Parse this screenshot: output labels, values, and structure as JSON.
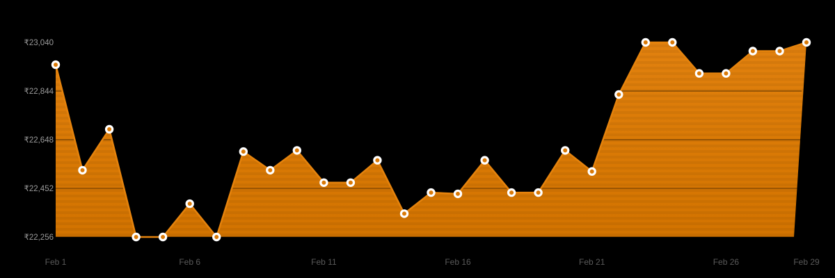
{
  "page": {
    "background": "#000000"
  },
  "chart_data": {
    "type": "area",
    "title": "",
    "xlabel": "",
    "ylabel": "",
    "currency": "₹",
    "x": [
      "Feb 1",
      "Feb 2",
      "Feb 3",
      "Feb 4",
      "Feb 5",
      "Feb 6",
      "Feb 7",
      "Feb 8",
      "Feb 9",
      "Feb 10",
      "Feb 11",
      "Feb 12",
      "Feb 13",
      "Feb 14",
      "Feb 15",
      "Feb 16",
      "Feb 17",
      "Feb 18",
      "Feb 19",
      "Feb 20",
      "Feb 21",
      "Feb 22",
      "Feb 23",
      "Feb 24",
      "Feb 25",
      "Feb 26",
      "Feb 27",
      "Feb 28",
      "Feb 29"
    ],
    "values": [
      22950,
      22525,
      22690,
      22256,
      22256,
      22390,
      22256,
      22600,
      22525,
      22605,
      22475,
      22475,
      22565,
      22350,
      22435,
      22430,
      22565,
      22435,
      22435,
      22605,
      22520,
      22830,
      23040,
      23040,
      22915,
      22915,
      23005,
      23005,
      23040
    ],
    "ylim": [
      22256,
      23040
    ],
    "y_ticks": [
      {
        "value": 23040,
        "label": "₹23,040"
      },
      {
        "value": 22844,
        "label": "₹22,844"
      },
      {
        "value": 22648,
        "label": "₹22,648"
      },
      {
        "value": 22452,
        "label": "₹22,452"
      },
      {
        "value": 22256,
        "label": "₹22,256"
      }
    ],
    "x_ticks": [
      {
        "index": 0,
        "label": "Feb 1"
      },
      {
        "index": 5,
        "label": "Feb 6"
      },
      {
        "index": 10,
        "label": "Feb 11"
      },
      {
        "index": 15,
        "label": "Feb 16"
      },
      {
        "index": 20,
        "label": "Feb 21"
      },
      {
        "index": 25,
        "label": "Feb 26"
      },
      {
        "index": 28,
        "label": "Feb 29"
      }
    ],
    "grid": "horizontal",
    "legend_position": "none"
  },
  "style": {
    "area_fill_top": "#E1810F",
    "area_fill_mid": "#DA7A06",
    "area_fill_bottom": "#D27300",
    "line_color": "#E5830D",
    "point_fill": "#DA7A08",
    "point_ring": "#FFFFFF",
    "grid_color": "rgba(0,0,0,0.28)",
    "band_color": "rgba(0,0,0,0.05)",
    "y_tick_color": "#9C9C9C",
    "x_tick_color": "#5A5A5A",
    "background": "#000000"
  }
}
